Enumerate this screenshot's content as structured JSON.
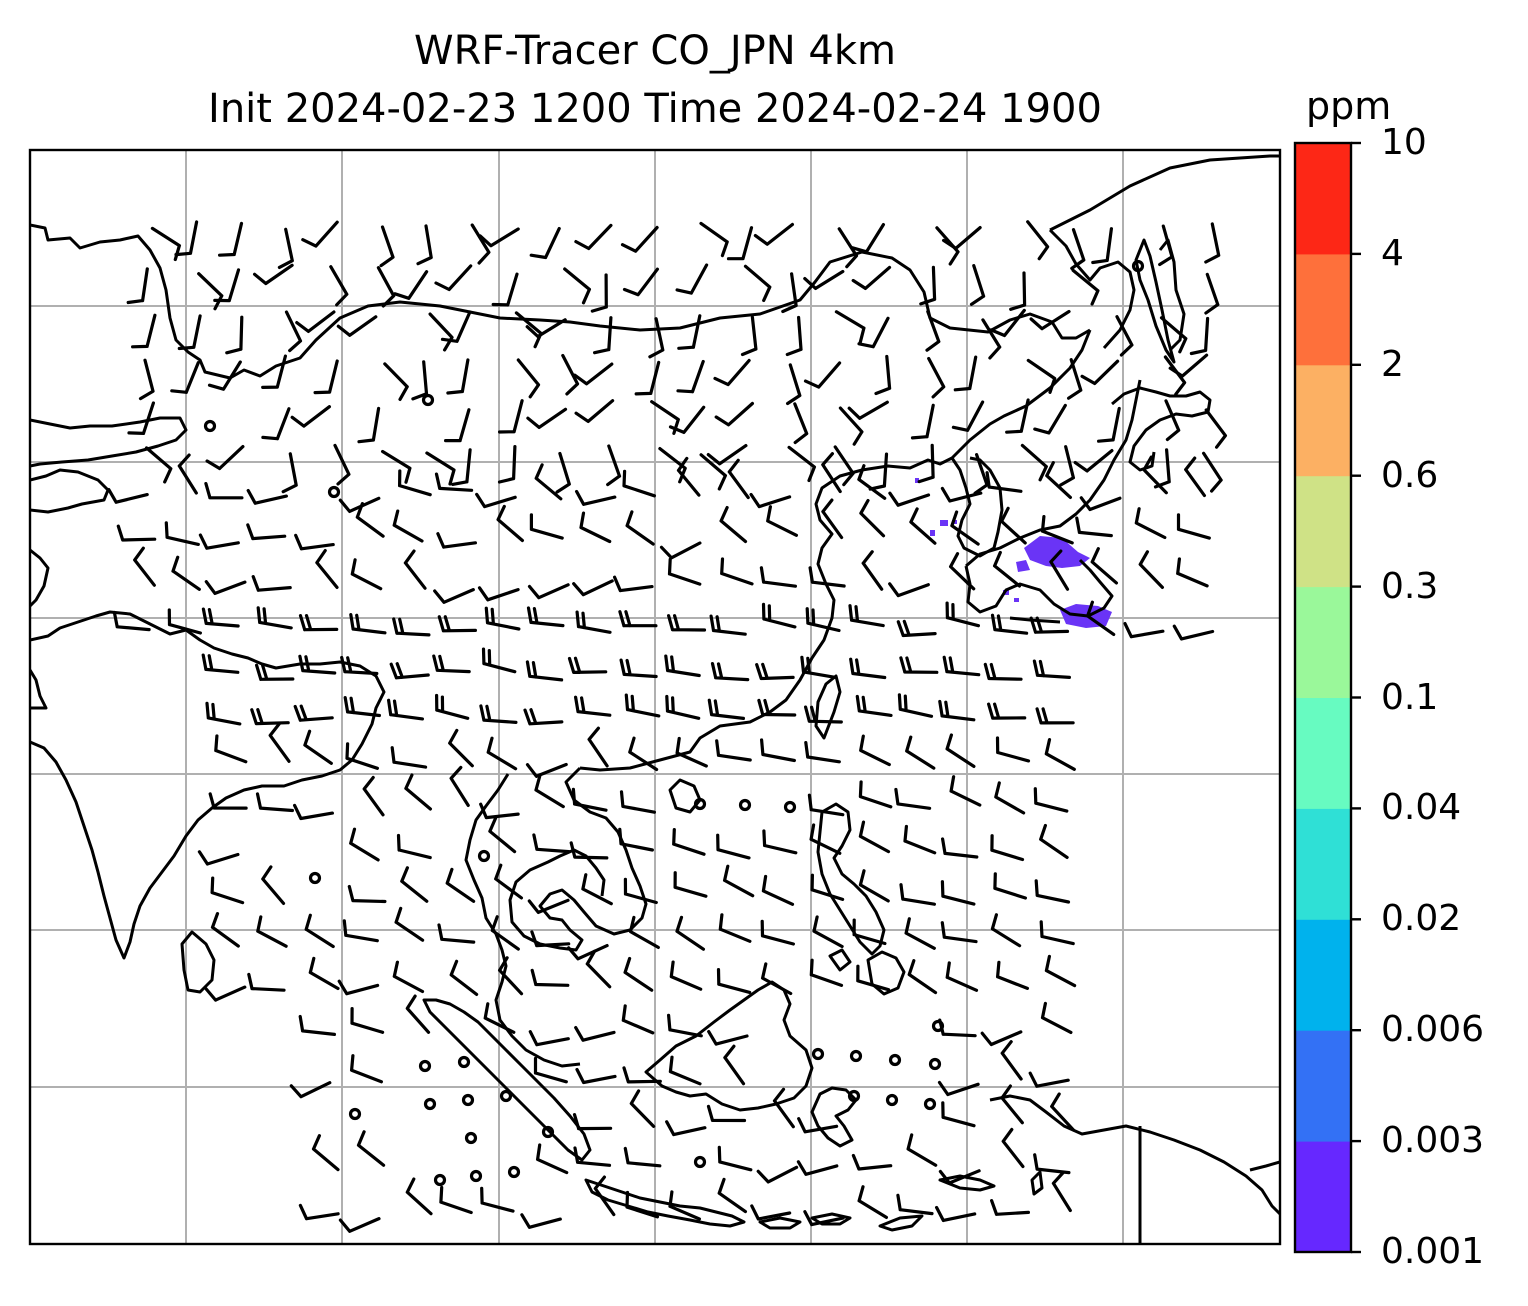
{
  "title_line1": "WRF-Tracer CO_JPN 4km",
  "title_line2": "Init 2024-02-23 1200 Time 2024-02-24 1900",
  "colorbar": {
    "unit": "ppm",
    "levels": [
      "0.001",
      "0.003",
      "0.006",
      "0.02",
      "0.04",
      "0.1",
      "0.3",
      "0.6",
      "2",
      "4",
      "10"
    ],
    "colors": [
      "#6628ff",
      "#3371f5",
      "#00b2ed",
      "#2fe0d6",
      "#67fbc1",
      "#9af89a",
      "#cfe286",
      "#fcb063",
      "#fe703b",
      "#fd2716"
    ]
  },
  "tracer_color": "#6a34f6"
}
